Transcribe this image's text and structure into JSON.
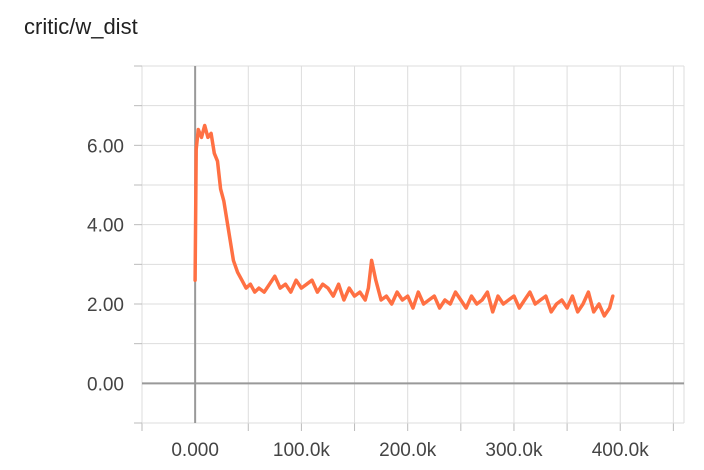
{
  "chart_data": {
    "type": "line",
    "title": "critic/w_dist",
    "xlabel": "",
    "ylabel": "",
    "xlim": [
      -50000,
      460000
    ],
    "ylim": [
      -1.0,
      8.0
    ],
    "grid": true,
    "x_ticks": [
      {
        "value": 0,
        "label": "0.000"
      },
      {
        "value": 100000,
        "label": "100.0k"
      },
      {
        "value": 200000,
        "label": "200.0k"
      },
      {
        "value": 300000,
        "label": "300.0k"
      },
      {
        "value": 400000,
        "label": "400.0k"
      }
    ],
    "y_ticks": [
      {
        "value": 0,
        "label": "0.00"
      },
      {
        "value": 2,
        "label": "2.00"
      },
      {
        "value": 4,
        "label": "4.00"
      },
      {
        "value": 6,
        "label": "6.00"
      }
    ],
    "series": [
      {
        "color": "#ff7043",
        "x": [
          0,
          1000,
          3000,
          6000,
          9000,
          12000,
          15000,
          18000,
          21000,
          24000,
          27000,
          30000,
          33000,
          36000,
          40000,
          44000,
          48000,
          52000,
          56000,
          60000,
          65000,
          70000,
          75000,
          80000,
          85000,
          90000,
          95000,
          100000,
          105000,
          110000,
          115000,
          120000,
          125000,
          130000,
          135000,
          140000,
          145000,
          150000,
          155000,
          160000,
          163000,
          166000,
          170000,
          175000,
          180000,
          185000,
          190000,
          195000,
          200000,
          205000,
          210000,
          215000,
          220000,
          225000,
          230000,
          235000,
          240000,
          245000,
          250000,
          255000,
          260000,
          265000,
          270000,
          275000,
          280000,
          285000,
          290000,
          295000,
          300000,
          305000,
          310000,
          315000,
          320000,
          325000,
          330000,
          335000,
          340000,
          345000,
          350000,
          355000,
          360000,
          365000,
          370000,
          375000,
          380000,
          385000,
          390000,
          393000
        ],
        "y": [
          2.6,
          5.9,
          6.4,
          6.2,
          6.5,
          6.2,
          6.3,
          5.8,
          5.6,
          4.9,
          4.6,
          4.1,
          3.6,
          3.1,
          2.8,
          2.6,
          2.4,
          2.5,
          2.3,
          2.4,
          2.3,
          2.5,
          2.7,
          2.4,
          2.5,
          2.3,
          2.6,
          2.4,
          2.5,
          2.6,
          2.3,
          2.5,
          2.4,
          2.2,
          2.5,
          2.1,
          2.4,
          2.2,
          2.3,
          2.1,
          2.4,
          3.1,
          2.6,
          2.1,
          2.2,
          2.0,
          2.3,
          2.1,
          2.2,
          1.9,
          2.3,
          2.0,
          2.1,
          2.2,
          1.9,
          2.1,
          2.0,
          2.3,
          2.1,
          1.9,
          2.2,
          2.0,
          2.1,
          2.3,
          1.8,
          2.2,
          2.0,
          2.1,
          2.2,
          1.9,
          2.1,
          2.3,
          2.0,
          2.1,
          2.2,
          1.8,
          2.0,
          2.1,
          1.9,
          2.2,
          1.8,
          2.0,
          2.3,
          1.8,
          2.0,
          1.7,
          1.9,
          2.2
        ]
      }
    ]
  }
}
